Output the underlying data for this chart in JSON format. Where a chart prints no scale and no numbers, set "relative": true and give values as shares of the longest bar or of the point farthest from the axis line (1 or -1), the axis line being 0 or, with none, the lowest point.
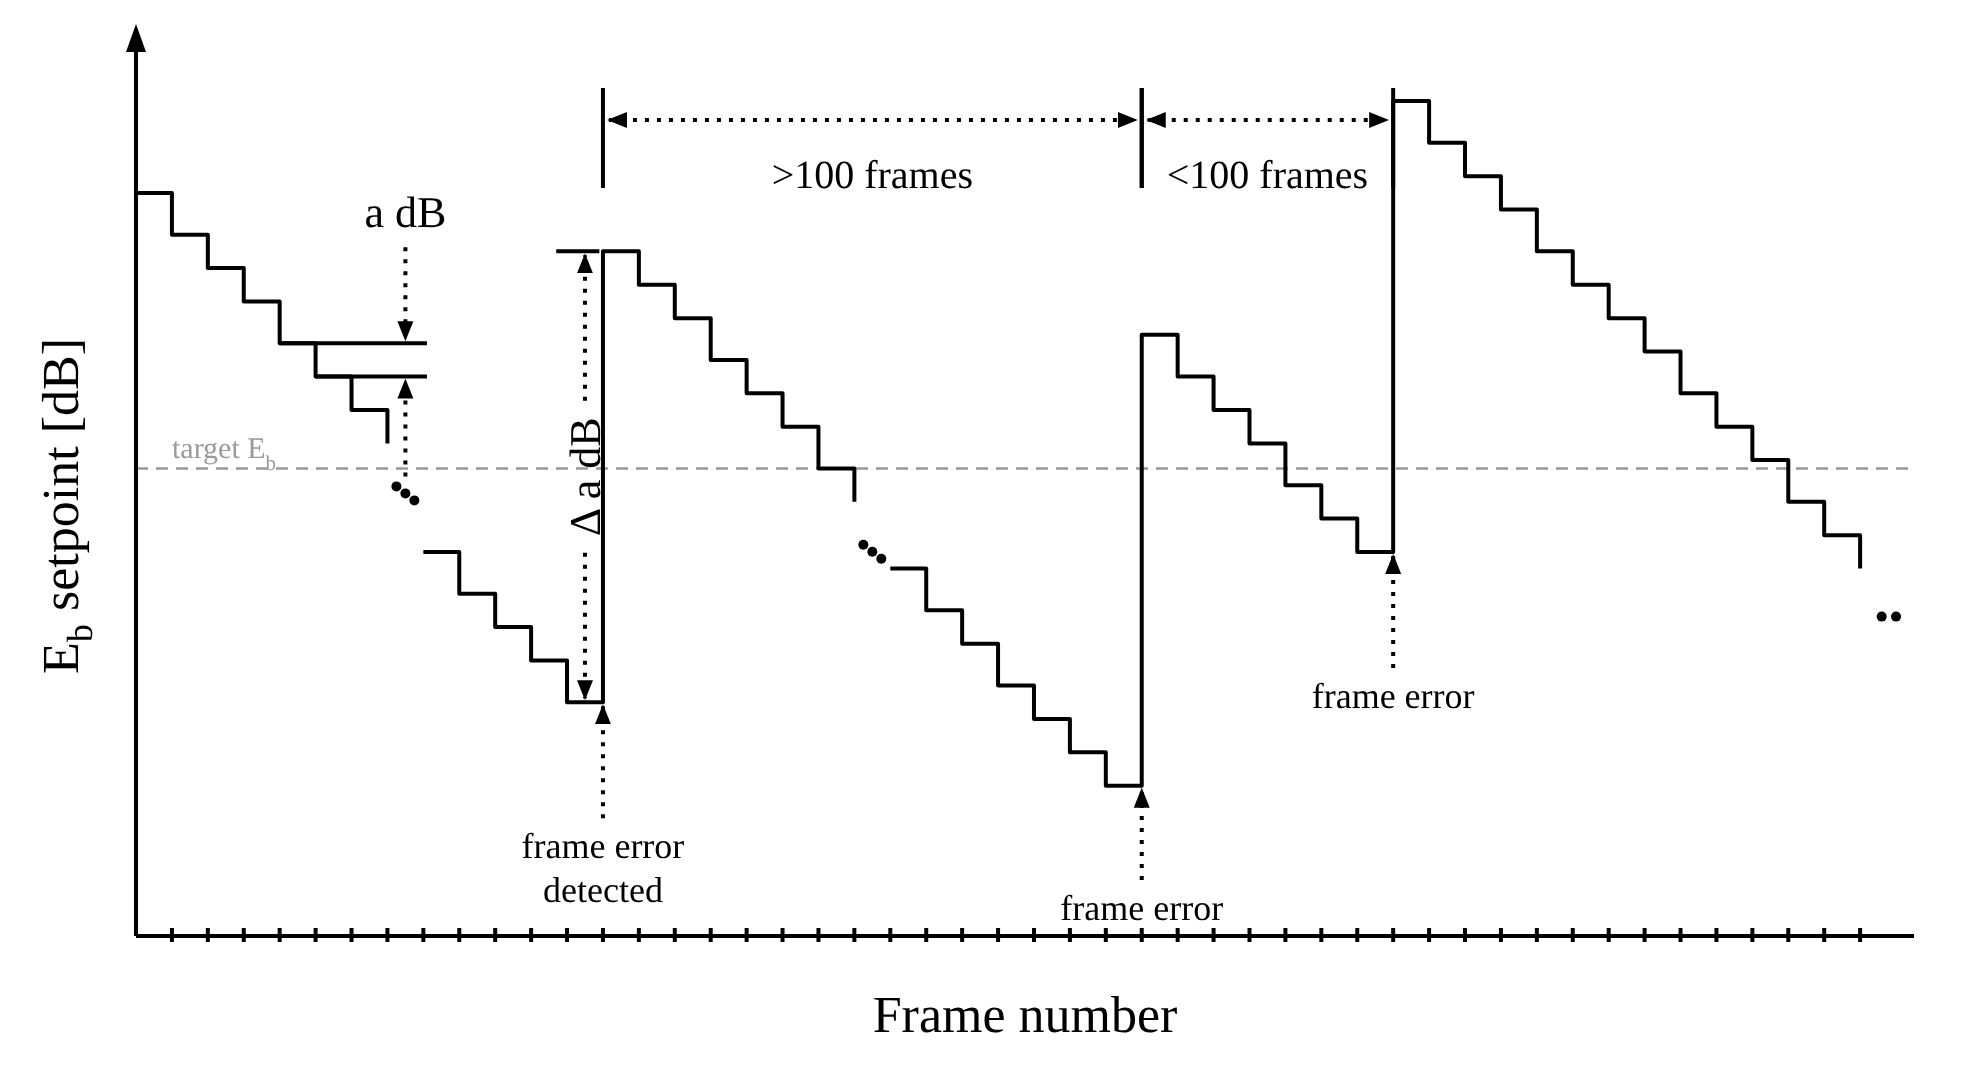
{
  "chart_data": {
    "type": "step",
    "relative": true,
    "xlabel": "Frame number",
    "ylabel": "E$_{b}$ setpoint [dB]",
    "marker": "none",
    "line_style": "solid",
    "grid": false,
    "legend": false,
    "categories": [
      null,
      null,
      null,
      null,
      null,
      null,
      null,
      null,
      null,
      null,
      null,
      null,
      null,
      null,
      null,
      null,
      null,
      null,
      null,
      null,
      null,
      null,
      null,
      null,
      null,
      null,
      null,
      null,
      null,
      null,
      null,
      null,
      null,
      null,
      null,
      null,
      null,
      null,
      null,
      null,
      null,
      null,
      null,
      null,
      null,
      null,
      null,
      null,
      null
    ],
    "series": [
      {
        "color": "#000000",
        "values": [
          0.89,
          0.84,
          0.8,
          0.76,
          0.71,
          0.67,
          0.63,
          0.59,
          null,
          null,
          null,
          null,
          null,
          null,
          null,
          null,
          null,
          null,
          null,
          null,
          null,
          null,
          null,
          null,
          null,
          null,
          null,
          null,
          null,
          null,
          null,
          null,
          null,
          null,
          null,
          null,
          null,
          null,
          null,
          null,
          null,
          null,
          null,
          null,
          null,
          null,
          null,
          null,
          null
        ]
      },
      {
        "color": "#000000",
        "values": [
          null,
          null,
          null,
          null,
          null,
          null,
          null,
          null,
          0.46,
          0.41,
          0.37,
          0.33,
          0.28,
          0.82,
          0.78,
          0.74,
          0.69,
          0.65,
          0.61,
          0.56,
          0.52,
          null,
          null,
          null,
          null,
          null,
          null,
          null,
          null,
          null,
          null,
          null,
          null,
          null,
          null,
          null,
          null,
          null,
          null,
          null,
          null,
          null,
          null,
          null,
          null,
          null,
          null,
          null,
          null
        ]
      },
      {
        "color": "#000000",
        "values": [
          null,
          null,
          null,
          null,
          null,
          null,
          null,
          null,
          null,
          null,
          null,
          null,
          null,
          null,
          null,
          null,
          null,
          null,
          null,
          null,
          null,
          0.44,
          0.39,
          0.35,
          0.3,
          0.26,
          0.22,
          0.18,
          0.72,
          0.67,
          0.63,
          0.59,
          0.54,
          0.5,
          0.46,
          1,
          0.95,
          0.91,
          0.87,
          0.82,
          0.78,
          0.74,
          0.7,
          0.65,
          0.61,
          0.57,
          0.52,
          0.48,
          0.44
        ]
      }
    ],
    "ref_lines": [
      {
        "axis": "y",
        "value": 0.56,
        "label": "target E$_{b}$",
        "color": "#9a9a9a",
        "line_style": "dashed"
      }
    ],
    "annotations": [
      "a dB",
      "Δ a dB",
      ">100 frames",
      "<100 frames",
      "frame error detected",
      "frame error",
      "frame error"
    ]
  }
}
